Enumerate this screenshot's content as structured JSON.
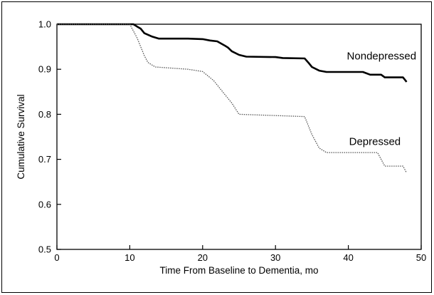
{
  "chart_data": {
    "type": "line",
    "xlabel": "Time From Baseline to Dementia, mo",
    "ylabel": "Cumulative Survival",
    "xlim": [
      0,
      50
    ],
    "ylim": [
      0.5,
      1.0
    ],
    "x_ticks": [
      "0",
      "10",
      "20",
      "30",
      "40",
      "50"
    ],
    "y_ticks": [
      "0.5",
      "0.6",
      "0.7",
      "0.8",
      "0.9",
      "1.0"
    ],
    "x_tick_values": [
      0,
      10,
      20,
      30,
      40,
      50
    ],
    "y_tick_values": [
      0.5,
      0.6,
      0.7,
      0.8,
      0.9,
      1.0
    ],
    "grid": false,
    "series": [
      {
        "name": "Nondepressed",
        "style": "solid",
        "color": "#000000",
        "points": [
          [
            0,
            1.0
          ],
          [
            10.5,
            1.0
          ],
          [
            11,
            0.995
          ],
          [
            11.5,
            0.99
          ],
          [
            12,
            0.98
          ],
          [
            13,
            0.973
          ],
          [
            14,
            0.968
          ],
          [
            18,
            0.968
          ],
          [
            20,
            0.967
          ],
          [
            21,
            0.964
          ],
          [
            22,
            0.962
          ],
          [
            23,
            0.953
          ],
          [
            23.5,
            0.948
          ],
          [
            24,
            0.94
          ],
          [
            25,
            0.932
          ],
          [
            26,
            0.928
          ],
          [
            30,
            0.927
          ],
          [
            31,
            0.925
          ],
          [
            34,
            0.924
          ],
          [
            34.5,
            0.915
          ],
          [
            35,
            0.905
          ],
          [
            36,
            0.897
          ],
          [
            37,
            0.894
          ],
          [
            42,
            0.894
          ],
          [
            43,
            0.888
          ],
          [
            44.5,
            0.888
          ],
          [
            45,
            0.882
          ],
          [
            47.5,
            0.882
          ],
          [
            48,
            0.872
          ]
        ]
      },
      {
        "name": "Depressed",
        "style": "dotted",
        "color": "#555555",
        "points": [
          [
            0,
            1.0
          ],
          [
            10,
            1.0
          ],
          [
            11,
            0.97
          ],
          [
            12,
            0.93
          ],
          [
            12.5,
            0.915
          ],
          [
            13.5,
            0.905
          ],
          [
            18,
            0.9
          ],
          [
            20,
            0.895
          ],
          [
            21.5,
            0.875
          ],
          [
            23,
            0.845
          ],
          [
            24,
            0.825
          ],
          [
            25,
            0.8
          ],
          [
            34,
            0.795
          ],
          [
            35,
            0.755
          ],
          [
            36,
            0.725
          ],
          [
            37,
            0.715
          ],
          [
            44,
            0.715
          ],
          [
            45,
            0.685
          ],
          [
            47.5,
            0.685
          ],
          [
            48,
            0.67
          ]
        ]
      }
    ],
    "annotations": [
      {
        "text": "Nondepressed",
        "x": 39.8,
        "y": 0.922
      },
      {
        "text": "Depressed",
        "x": 40.1,
        "y": 0.732
      }
    ]
  }
}
